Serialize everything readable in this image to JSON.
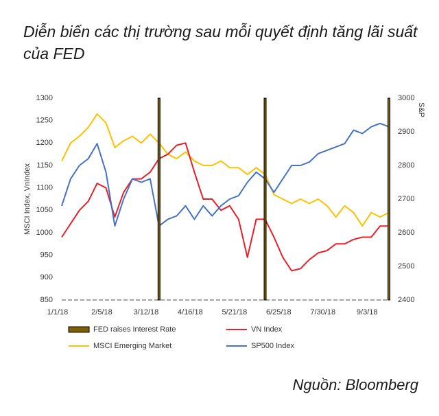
{
  "chart_data": {
    "type": "line",
    "title": "Diễn biến các thị trường sau mỗi quyết định tăng lãi suất của FED",
    "source": "Nguồn: Bloomberg",
    "ylabel": "MSCI Index, VnIndex",
    "y2label": "S&P",
    "categories": [
      "1/1/18",
      null,
      null,
      null,
      null,
      "2/5/18",
      null,
      null,
      null,
      null,
      "3/12/18",
      null,
      null,
      null,
      null,
      "4/16/18",
      null,
      null,
      null,
      null,
      "5/21/18",
      null,
      null,
      null,
      null,
      "6/25/18",
      null,
      null,
      null,
      null,
      "7/30/18",
      null,
      null,
      null,
      null,
      "9/3/18",
      null,
      null
    ],
    "ylim": [
      850,
      1300
    ],
    "yticks": [
      850,
      900,
      950,
      1000,
      1050,
      1100,
      1150,
      1200,
      1250,
      1300
    ],
    "y2lim": [
      2400,
      3000
    ],
    "y2ticks": [
      2400,
      2500,
      2600,
      2700,
      2800,
      2900,
      3000
    ],
    "series": [
      {
        "name": "FED raises Interest Rate",
        "type": "bar",
        "color": "#7f6000",
        "values": [
          null,
          null,
          null,
          null,
          null,
          null,
          null,
          null,
          null,
          null,
          null,
          1300,
          null,
          null,
          null,
          null,
          null,
          null,
          null,
          null,
          null,
          null,
          null,
          1300,
          null,
          null,
          null,
          null,
          null,
          null,
          null,
          null,
          null,
          null,
          null,
          null,
          null,
          1300
        ]
      },
      {
        "name": "VN Index",
        "color": "#e8202a",
        "values": [
          990,
          1020,
          1050,
          1070,
          1110,
          1100,
          1035,
          1090,
          1120,
          1120,
          1135,
          1165,
          1175,
          1195,
          1200,
          1135,
          1075,
          1075,
          1050,
          1060,
          1030,
          945,
          1030,
          1030,
          990,
          945,
          915,
          920,
          940,
          955,
          960,
          975,
          975,
          985,
          990,
          990,
          1015,
          1015
        ]
      },
      {
        "name": "MSCI Emerging Market",
        "color": "#ffc000",
        "values": [
          1160,
          1200,
          1215,
          1235,
          1265,
          1245,
          1190,
          1205,
          1215,
          1200,
          1220,
          1200,
          1175,
          1165,
          1180,
          1160,
          1150,
          1150,
          1160,
          1145,
          1145,
          1130,
          1145,
          1130,
          1085,
          1075,
          1065,
          1075,
          1065,
          1075,
          1060,
          1035,
          1060,
          1045,
          1015,
          1045,
          1035,
          1045
        ]
      },
      {
        "name": "SP500 Index",
        "color": "#4472c4",
        "axis": "y2",
        "values": [
          2680,
          2760,
          2800,
          2820,
          2865,
          2780,
          2620,
          2700,
          2760,
          2750,
          2760,
          2620,
          2640,
          2650,
          2680,
          2640,
          2680,
          2650,
          2680,
          2700,
          2710,
          2750,
          2780,
          2760,
          2720,
          2760,
          2800,
          2800,
          2810,
          2835,
          2845,
          2855,
          2865,
          2905,
          2895,
          2915,
          2925,
          2915
        ]
      }
    ]
  }
}
